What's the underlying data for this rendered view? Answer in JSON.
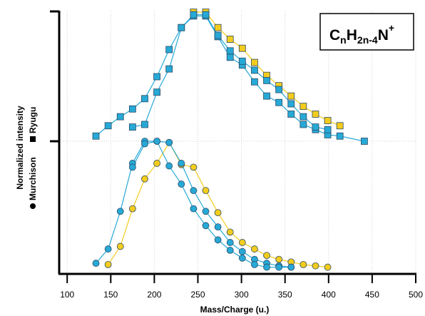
{
  "chart_data": {
    "type": "scatter",
    "xlabel": "Mass/Charge (u.)",
    "ylabel": "Normalized intensity",
    "legend": [
      {
        "symbol": "circle",
        "name": "Murchison"
      },
      {
        "symbol": "square",
        "name": "Ryugu"
      }
    ],
    "annotation": {
      "base": "C",
      "sub1": "n",
      "mid": "H",
      "sub2": "2n-4",
      "tail": "N",
      "sup": "+"
    },
    "xlim": [
      90,
      500
    ],
    "xticks": [
      "100",
      "150",
      "200",
      "250",
      "300",
      "350",
      "400",
      "450",
      "500"
    ],
    "grid": true,
    "colors": {
      "blue": "#27a9d6",
      "yellow": "#f3cc1d",
      "stroke": "#2b4a66",
      "grid": "#d0d0d0"
    },
    "series": [
      {
        "panel": "upper",
        "marker": "square",
        "color": "#f3cc1d",
        "x": [
          245,
          259,
          273,
          287,
          301,
          315,
          329,
          343,
          357,
          371,
          385,
          399,
          413
        ],
        "y": [
          1.0,
          1.0,
          0.88,
          0.79,
          0.72,
          0.61,
          0.51,
          0.43,
          0.35,
          0.27,
          0.21,
          0.16,
          0.12
        ]
      },
      {
        "panel": "upper",
        "marker": "square",
        "color": "#27a9d6",
        "x": [
          133,
          147,
          161,
          175,
          189,
          203,
          217,
          231,
          245,
          259,
          273,
          287,
          301,
          315,
          329,
          343,
          357,
          371,
          385,
          399,
          413,
          441
        ],
        "y": [
          0.04,
          0.12,
          0.19,
          0.25,
          0.33,
          0.5,
          0.71,
          0.88,
          0.97,
          0.97,
          0.81,
          0.65,
          0.59,
          0.46,
          0.35,
          0.3,
          0.21,
          0.13,
          0.09,
          0.05,
          0.04,
          0.0
        ]
      },
      {
        "panel": "upper",
        "marker": "square",
        "color": "#27a9d6",
        "x": [
          175,
          189,
          203,
          217,
          231,
          245,
          259,
          273,
          287,
          301,
          315,
          329,
          343,
          357,
          371,
          385,
          399
        ],
        "y": [
          0.11,
          0.13,
          0.38,
          0.56,
          0.88,
          0.98,
          0.98,
          0.82,
          0.7,
          0.62,
          0.55,
          0.47,
          0.4,
          0.29,
          0.19,
          0.11,
          0.09
        ]
      },
      {
        "panel": "lower",
        "marker": "circle",
        "color": "#f3cc1d",
        "x": [
          147,
          161,
          175,
          189,
          203,
          217,
          231,
          245,
          259,
          273,
          287,
          301,
          315,
          329,
          343,
          357,
          371,
          385,
          399
        ],
        "y": [
          0.05,
          0.19,
          0.48,
          0.71,
          0.83,
          0.99,
          0.82,
          0.8,
          0.62,
          0.45,
          0.3,
          0.22,
          0.17,
          0.12,
          0.09,
          0.07,
          0.05,
          0.04,
          0.03
        ]
      },
      {
        "panel": "lower",
        "marker": "circle",
        "color": "#27a9d6",
        "x": [
          133,
          147,
          161,
          175,
          189,
          203,
          217,
          231,
          245,
          259,
          273,
          287,
          301,
          315,
          329,
          343,
          357
        ],
        "y": [
          0.06,
          0.17,
          0.46,
          0.83,
          1.0,
          1.0,
          0.99,
          0.83,
          0.62,
          0.46,
          0.34,
          0.22,
          0.15,
          0.09,
          0.06,
          0.04,
          0.03
        ]
      },
      {
        "panel": "lower",
        "marker": "circle",
        "color": "#27a9d6",
        "x": [
          175,
          189,
          203,
          217,
          231,
          245,
          259,
          273,
          287,
          301,
          315,
          329,
          343,
          357
        ],
        "y": [
          0.8,
          0.98,
          1.0,
          0.81,
          0.67,
          0.48,
          0.35,
          0.24,
          0.16,
          0.1,
          0.05,
          0.03,
          0.03,
          0.03
        ]
      }
    ]
  }
}
